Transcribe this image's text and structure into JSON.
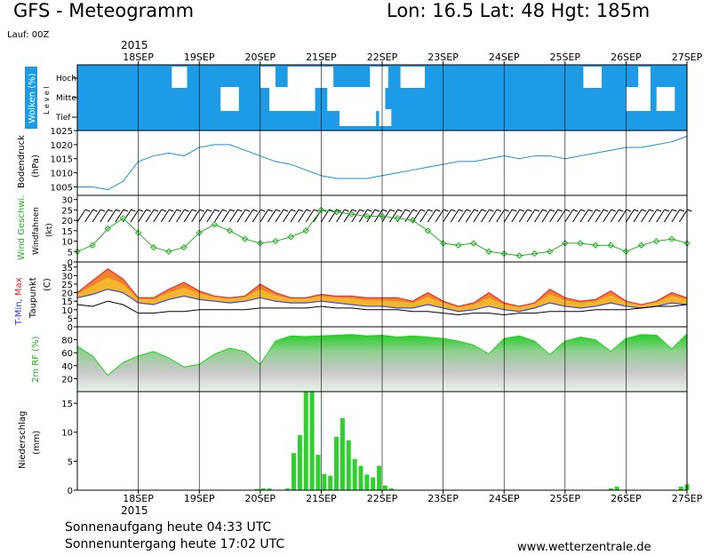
{
  "header": {
    "title": "GFS - Meteogramm",
    "location": "Lon: 16.5 Lat: 48 Hgt: 185m",
    "run": "Lauf: 00Z",
    "year": "2015"
  },
  "footer": {
    "sunrise": "Sonnenaufgang heute 04:33 UTC",
    "sunset": "Sonnenuntergang heute 17:02 UTC",
    "website": "www.wetterzentrale.de"
  },
  "chart_data": [
    {
      "type": "area",
      "name": "clouds",
      "ylabel": "Wolken (%)",
      "ylabel2": "L e v e l",
      "level_labels": [
        "Hoch",
        "Mittel",
        "Tief"
      ],
      "x_ticks": [
        "18SEP",
        "19SEP",
        "20SEP",
        "21SEP",
        "22SEP",
        "23SEP",
        "24SEP",
        "25SEP",
        "26SEP",
        "27SEP"
      ],
      "colors": {
        "cloud": "#1e9be6",
        "clear": "#ffffff"
      },
      "clear_gaps": [
        {
          "level": "Hoch",
          "from": 18.55,
          "to": 18.8
        },
        {
          "level": "Hoch",
          "from": 20.0,
          "to": 20.25
        },
        {
          "level": "Hoch",
          "from": 20.45,
          "to": 21.2
        },
        {
          "level": "Hoch",
          "from": 21.8,
          "to": 22.1
        },
        {
          "level": "Hoch",
          "from": 22.3,
          "to": 22.7
        },
        {
          "level": "Hoch",
          "from": 25.3,
          "to": 25.6
        },
        {
          "level": "Hoch",
          "from": 26.2,
          "to": 26.4
        },
        {
          "level": "Mittel",
          "from": 19.35,
          "to": 19.65
        },
        {
          "level": "Mittel",
          "from": 20.15,
          "to": 20.9
        },
        {
          "level": "Mittel",
          "from": 21.1,
          "to": 22.05
        },
        {
          "level": "Mittel",
          "from": 26.0,
          "to": 26.4
        },
        {
          "level": "Mittel",
          "from": 26.5,
          "to": 26.8
        },
        {
          "level": "Tief",
          "from": 21.3,
          "to": 21.9
        },
        {
          "level": "Tief",
          "from": 21.95,
          "to": 22.15
        }
      ]
    },
    {
      "type": "line",
      "name": "pressure",
      "ylabel": "Bodendruck",
      "unit": "(hPa)",
      "ylim": [
        1002,
        1025
      ],
      "y_ticks": [
        1005,
        1010,
        1015,
        1020,
        1025
      ],
      "color": "#1a8fd6",
      "x": [
        17.0,
        17.25,
        17.5,
        17.75,
        18.0,
        18.25,
        18.5,
        18.75,
        19.0,
        19.25,
        19.5,
        19.75,
        20.0,
        20.25,
        20.5,
        20.75,
        21.0,
        21.25,
        21.5,
        21.75,
        22.0,
        22.25,
        22.5,
        22.75,
        23.0,
        23.25,
        23.5,
        23.75,
        24.0,
        24.25,
        24.5,
        24.75,
        25.0,
        25.25,
        25.5,
        25.75,
        26.0,
        26.25,
        26.5,
        26.75,
        27.0
      ],
      "values": [
        1005,
        1005,
        1004,
        1007,
        1014,
        1016,
        1017,
        1016,
        1019,
        1020,
        1020,
        1018,
        1016,
        1014,
        1013,
        1011,
        1009,
        1008,
        1008,
        1008,
        1009,
        1010,
        1011,
        1012,
        1013,
        1014,
        1014,
        1015,
        1016,
        1015,
        1016,
        1016,
        1015,
        1016,
        1017,
        1018,
        1019,
        1019,
        1020,
        1021,
        1023
      ]
    },
    {
      "type": "line",
      "name": "wind",
      "ylabel": "Wind Geschwi.",
      "ylabel2": "Windfahnen",
      "unit": "(kt)",
      "ylim": [
        0,
        32
      ],
      "y_ticks": [
        0,
        5,
        10,
        15,
        20,
        25,
        30
      ],
      "color": "#22b022",
      "x": [
        17.0,
        17.25,
        17.5,
        17.75,
        18.0,
        18.25,
        18.5,
        18.75,
        19.0,
        19.25,
        19.5,
        19.75,
        20.0,
        20.25,
        20.5,
        20.75,
        21.0,
        21.25,
        21.5,
        21.75,
        22.0,
        22.25,
        22.5,
        22.75,
        23.0,
        23.25,
        23.5,
        23.75,
        24.0,
        24.25,
        24.5,
        24.75,
        25.0,
        25.25,
        25.5,
        25.75,
        26.0,
        26.25,
        26.5,
        26.75,
        27.0
      ],
      "values": [
        5,
        8,
        16,
        21,
        14,
        7,
        5,
        7,
        14,
        18,
        15,
        11,
        9,
        10,
        12,
        15,
        25,
        24,
        23,
        22,
        22,
        21,
        20,
        15,
        9,
        8,
        9,
        5,
        4,
        3,
        4,
        5,
        9,
        9,
        8,
        8,
        5,
        8,
        10,
        11,
        9
      ]
    },
    {
      "type": "area",
      "name": "temperature",
      "ylabel": "T-Min, Max",
      "ylabel2": "Taupunkt",
      "unit": "(C)",
      "ylim": [
        0,
        38
      ],
      "y_ticks": [
        0,
        5,
        10,
        15,
        20,
        25,
        30,
        35
      ],
      "x": [
        17.0,
        17.25,
        17.5,
        17.75,
        18.0,
        18.25,
        18.5,
        18.75,
        19.0,
        19.25,
        19.5,
        19.75,
        20.0,
        20.25,
        20.5,
        20.75,
        21.0,
        21.25,
        21.5,
        21.75,
        22.0,
        22.25,
        22.5,
        22.75,
        23.0,
        23.25,
        23.5,
        23.75,
        24.0,
        24.25,
        24.5,
        24.75,
        25.0,
        25.25,
        25.5,
        25.75,
        26.0,
        26.25,
        26.5,
        26.75,
        27.0
      ],
      "t_max": [
        20,
        27,
        34,
        28,
        17,
        17,
        22,
        26,
        21,
        18,
        17,
        18,
        25,
        20,
        17,
        17,
        19,
        18,
        18,
        17,
        17,
        17,
        15,
        20,
        15,
        12,
        14,
        20,
        14,
        12,
        14,
        22,
        17,
        15,
        16,
        21,
        15,
        13,
        15,
        20,
        17
      ],
      "t_min": [
        17,
        19,
        22,
        20,
        14,
        13,
        16,
        18,
        16,
        15,
        14,
        15,
        17,
        15,
        14,
        14,
        15,
        14,
        13,
        12,
        12,
        11,
        11,
        13,
        11,
        9,
        10,
        12,
        10,
        9,
        11,
        14,
        12,
        11,
        12,
        14,
        12,
        11,
        12,
        14,
        13
      ],
      "dewpoint": [
        13,
        12,
        15,
        13,
        8,
        8,
        9,
        9,
        10,
        10,
        10,
        10,
        11,
        11,
        11,
        11,
        12,
        11,
        11,
        10,
        10,
        10,
        9,
        9,
        8,
        7,
        8,
        8,
        7,
        8,
        8,
        9,
        9,
        9,
        10,
        10,
        10,
        11,
        12,
        12,
        13
      ],
      "colors": {
        "max": "#e8303c",
        "mid": "#f07a2a",
        "low": "#f5b62e",
        "tmin": "#3c4cd0",
        "dewpoint": "#000000"
      }
    },
    {
      "type": "area",
      "name": "humidity",
      "ylabel": "2m RF (%)",
      "ylim": [
        0,
        100
      ],
      "y_ticks": [
        20,
        40,
        60,
        80
      ],
      "color": "#1fd21f",
      "x": [
        17.0,
        17.25,
        17.5,
        17.75,
        18.0,
        18.25,
        18.5,
        18.75,
        19.0,
        19.25,
        19.5,
        19.75,
        20.0,
        20.25,
        20.5,
        20.75,
        21.0,
        21.25,
        21.5,
        21.75,
        22.0,
        22.25,
        22.5,
        22.75,
        23.0,
        23.25,
        23.5,
        23.75,
        24.0,
        24.25,
        24.5,
        24.75,
        25.0,
        25.25,
        25.5,
        25.75,
        26.0,
        26.25,
        26.5,
        26.75,
        27.0
      ],
      "values": [
        70,
        55,
        25,
        45,
        55,
        62,
        52,
        38,
        42,
        58,
        67,
        62,
        42,
        78,
        86,
        85,
        86,
        87,
        88,
        86,
        87,
        84,
        86,
        84,
        82,
        78,
        72,
        58,
        82,
        86,
        78,
        57,
        78,
        84,
        80,
        62,
        82,
        88,
        87,
        66,
        89
      ]
    },
    {
      "type": "bar",
      "name": "precipitation",
      "ylabel": "Niederschlag",
      "unit": "(mm)",
      "ylim": [
        0,
        17
      ],
      "y_ticks": [
        0,
        5,
        10,
        15
      ],
      "color": "#2ecf2e",
      "x": [
        19.95,
        20.05,
        20.15,
        20.45,
        20.55,
        20.65,
        20.75,
        20.85,
        20.95,
        21.05,
        21.15,
        21.25,
        21.35,
        21.45,
        21.55,
        21.65,
        21.75,
        21.85,
        21.95,
        22.05,
        22.15,
        25.75,
        25.85,
        26.9,
        27.0
      ],
      "values": [
        0.2,
        0.3,
        0.3,
        0.3,
        6.4,
        9.5,
        17,
        17,
        6.1,
        2.8,
        2.5,
        9.2,
        12.4,
        8.6,
        5.4,
        4.2,
        2.7,
        2.2,
        4.2,
        0.8,
        0.3,
        0.3,
        0.6,
        0.6,
        1.0
      ]
    }
  ]
}
